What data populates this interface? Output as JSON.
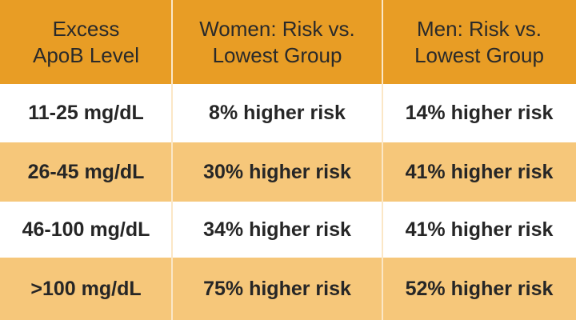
{
  "table": {
    "header": [
      [
        "Excess",
        "ApoB Level"
      ],
      [
        "Women: Risk vs.",
        "Lowest Group"
      ],
      [
        "Men: Risk vs.",
        "Lowest Group"
      ]
    ],
    "rows": [
      [
        "11-25 mg/dL",
        "8% higher risk",
        "14% higher risk"
      ],
      [
        "26-45 mg/dL",
        "30% higher risk",
        "41% higher risk"
      ],
      [
        "46-100 mg/dL",
        "34% higher risk",
        "41% higher risk"
      ],
      [
        ">100 mg/dL",
        "75% higher risk",
        "52% higher risk"
      ]
    ]
  }
}
